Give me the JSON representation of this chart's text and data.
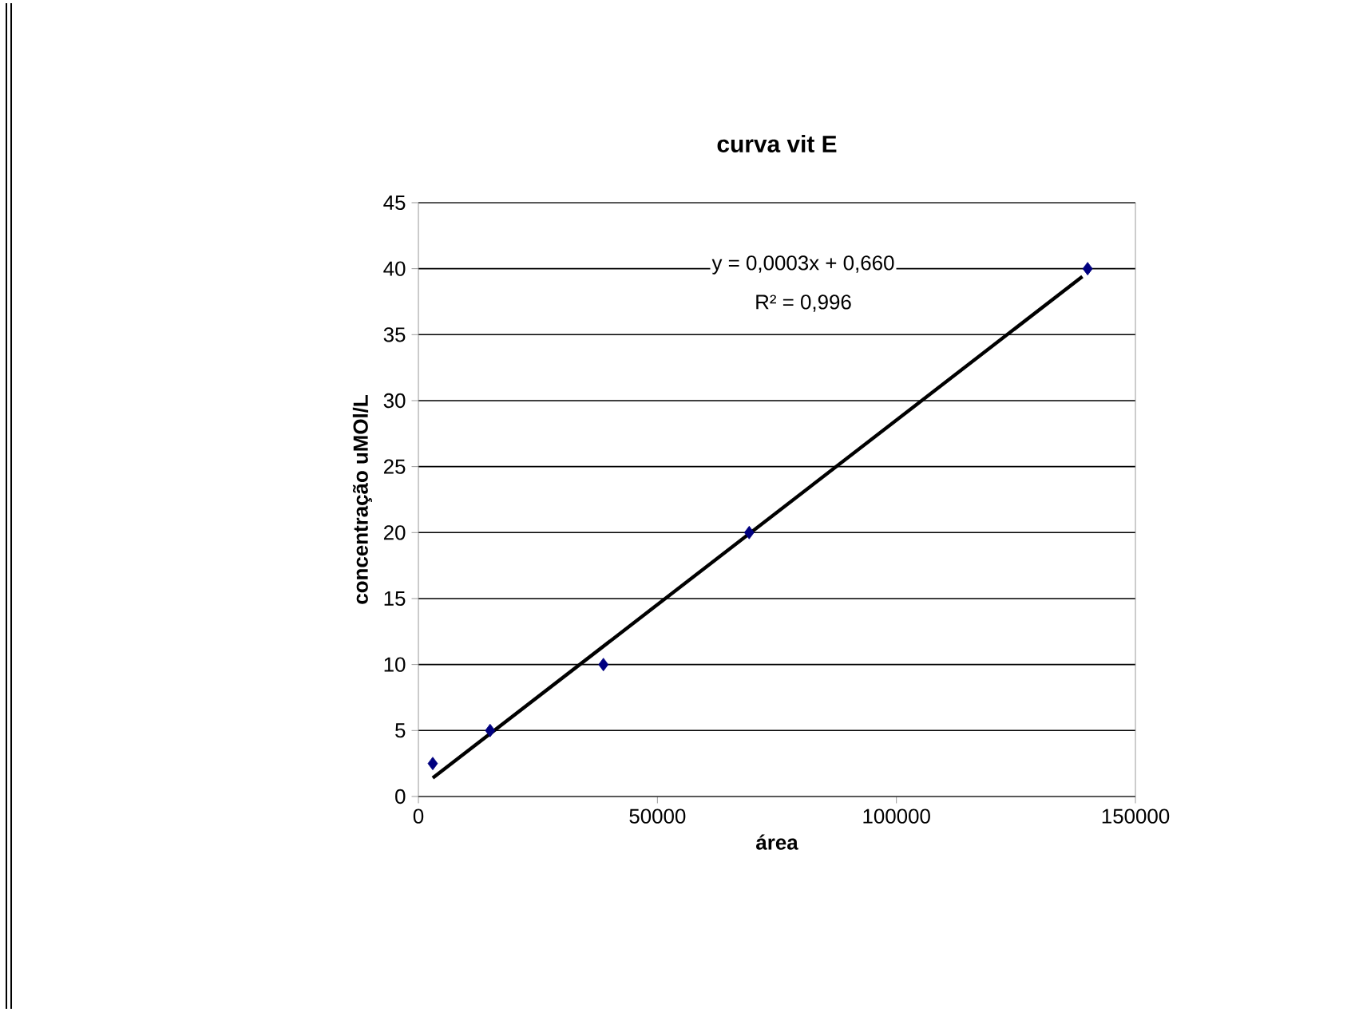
{
  "chart_data": {
    "type": "scatter",
    "title": "curva vit E",
    "xlabel": "área",
    "ylabel": "concentração uMOl/L",
    "annotations": [
      "y = 0,0003x + 0,660",
      "R² = 0,996"
    ],
    "series": [
      {
        "color": "#000080",
        "marker": "diamond",
        "x": [
          3000,
          15000,
          38700,
          69200,
          140000
        ],
        "values": [
          2.5,
          5,
          10,
          20,
          40
        ]
      },
      {
        "type": "line",
        "color": "#000000",
        "marker": "none",
        "line_style": "solid",
        "x": [
          3000,
          138900
        ],
        "values": [
          1.4,
          39.4
        ]
      }
    ],
    "xlim": [
      0,
      150000
    ],
    "xticks": [
      0,
      50000,
      100000,
      150000
    ],
    "ylim": [
      0,
      45
    ],
    "yticks": [
      0,
      5,
      10,
      15,
      20,
      25,
      30,
      35,
      40,
      45
    ],
    "grid": "y"
  }
}
